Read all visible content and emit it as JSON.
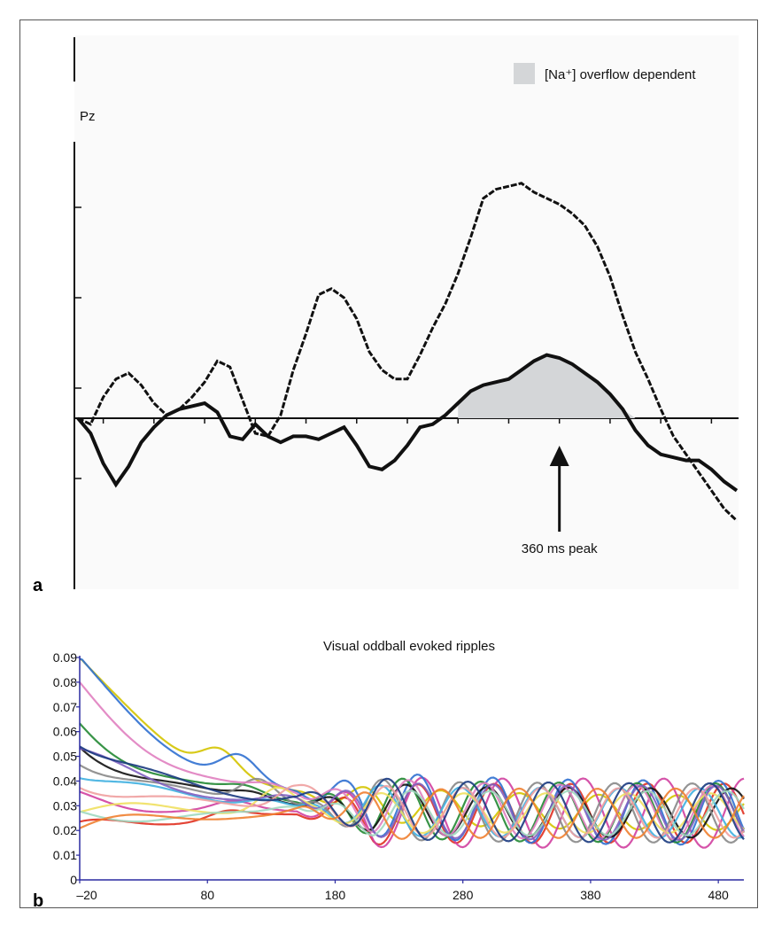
{
  "colors": {
    "background": "#ffffff",
    "frame": "#555555",
    "shade": "#d4d6d8",
    "panel_a_bg": "#fafafa",
    "axis_b": "#2a2aa0"
  },
  "panel_a": {
    "letter": "a",
    "channel_label": "Pz",
    "legend_label": "[Na⁺] overflow dependent",
    "annotation": "360 ms peak"
  },
  "panel_b": {
    "letter": "b",
    "title": "Visual oddball evoked ripples"
  },
  "chart_data": [
    {
      "type": "line",
      "panel": "a",
      "title": "",
      "xlabel": "",
      "ylabel": "",
      "x_range_ms": [
        -20,
        500
      ],
      "shaded_region": {
        "name": "[Na⁺] overflow dependent",
        "x_start": 280,
        "x_end": 450,
        "between": "thick trace and baseline"
      },
      "annotation": {
        "text": "360 ms peak",
        "x": 360
      },
      "series": [
        {
          "name": "",
          "style": "thin-dashed",
          "x": [
            -20,
            -10,
            0,
            10,
            20,
            30,
            40,
            50,
            60,
            70,
            80,
            90,
            100,
            110,
            120,
            130,
            140,
            150,
            160,
            170,
            180,
            190,
            200,
            210,
            220,
            230,
            240,
            250,
            260,
            270,
            280,
            290,
            300,
            310,
            320,
            330,
            340,
            350,
            360,
            370,
            380,
            390,
            400,
            410,
            420,
            430,
            440,
            450,
            460,
            470,
            480,
            490,
            500
          ],
          "y": [
            0.0,
            -0.2,
            0.7,
            1.3,
            1.5,
            1.1,
            0.5,
            0.1,
            0.3,
            0.7,
            1.2,
            1.9,
            1.7,
            0.6,
            -0.5,
            -0.6,
            0.1,
            1.6,
            2.8,
            4.1,
            4.3,
            4.0,
            3.3,
            2.2,
            1.6,
            1.3,
            1.3,
            2.1,
            3.0,
            3.8,
            4.8,
            6.0,
            7.3,
            7.6,
            7.7,
            7.8,
            7.5,
            7.3,
            7.1,
            6.8,
            6.4,
            5.7,
            4.7,
            3.4,
            2.2,
            1.3,
            0.3,
            -0.6,
            -1.2,
            -1.8,
            -2.4,
            -3.0,
            -3.4
          ]
        },
        {
          "name": "",
          "style": "thick-solid",
          "x": [
            -20,
            -10,
            0,
            10,
            20,
            30,
            40,
            50,
            60,
            70,
            80,
            90,
            100,
            110,
            120,
            130,
            140,
            150,
            160,
            170,
            180,
            190,
            200,
            210,
            220,
            230,
            240,
            250,
            260,
            270,
            280,
            290,
            300,
            310,
            320,
            330,
            340,
            350,
            360,
            370,
            380,
            390,
            400,
            410,
            420,
            430,
            440,
            450,
            460,
            470,
            480,
            490,
            500
          ],
          "y": [
            0.0,
            -0.5,
            -1.5,
            -2.2,
            -1.6,
            -0.8,
            -0.3,
            0.1,
            0.3,
            0.4,
            0.5,
            0.2,
            -0.6,
            -0.7,
            -0.2,
            -0.6,
            -0.8,
            -0.6,
            -0.6,
            -0.7,
            -0.5,
            -0.3,
            -0.9,
            -1.6,
            -1.7,
            -1.4,
            -0.9,
            -0.3,
            -0.2,
            0.1,
            0.5,
            0.9,
            1.1,
            1.2,
            1.3,
            1.6,
            1.9,
            2.1,
            2.0,
            1.8,
            1.5,
            1.2,
            0.8,
            0.3,
            -0.4,
            -0.9,
            -1.2,
            -1.3,
            -1.4,
            -1.4,
            -1.7,
            -2.1,
            -2.4
          ]
        }
      ]
    },
    {
      "type": "line",
      "panel": "b",
      "title": "Visual oddball evoked ripples",
      "xlabel": "",
      "ylabel": "",
      "xlim": [
        -20,
        500
      ],
      "ylim": [
        0,
        0.09
      ],
      "x_ticks": [
        -20,
        80,
        180,
        280,
        380,
        480
      ],
      "x_tick_labels": [
        "–20",
        "80",
        "180",
        "280",
        "380",
        "480"
      ],
      "y_ticks": [
        0,
        0.01,
        0.02,
        0.03,
        0.04,
        0.05,
        0.06,
        0.07,
        0.08,
        0.09
      ],
      "y_tick_labels": [
        "0",
        "0.01",
        "0.02",
        "0.03",
        "0.04",
        "0.05",
        "0.06",
        "0.07",
        "0.08",
        "0.09"
      ],
      "series": [
        {
          "color": "#d4c400",
          "start": 0.09,
          "amp": 0.007,
          "phase": 0.0,
          "freq": 1.0
        },
        {
          "color": "#e03020",
          "start": 0.02,
          "amp": 0.012,
          "phase": 1.1,
          "freq": 1.03
        },
        {
          "color": "#d040a0",
          "start": 0.032,
          "amp": 0.014,
          "phase": 2.0,
          "freq": 0.98
        },
        {
          "color": "#3070d0",
          "start": 0.088,
          "amp": 0.013,
          "phase": 0.6,
          "freq": 1.05
        },
        {
          "color": "#228833",
          "start": 0.062,
          "amp": 0.012,
          "phase": 2.8,
          "freq": 1.01
        },
        {
          "color": "#111111",
          "start": 0.055,
          "amp": 0.01,
          "phase": 3.5,
          "freq": 0.97
        },
        {
          "color": "#888888",
          "start": 0.05,
          "amp": 0.012,
          "phase": 4.2,
          "freq": 1.02
        },
        {
          "color": "#40b0e0",
          "start": 0.045,
          "amp": 0.01,
          "phase": 5.0,
          "freq": 0.99
        },
        {
          "color": "#e080c0",
          "start": 0.076,
          "amp": 0.011,
          "phase": 1.6,
          "freq": 1.04
        },
        {
          "color": "#f0e060",
          "start": 0.03,
          "amp": 0.008,
          "phase": 5.6,
          "freq": 0.96
        },
        {
          "color": "#8060c0",
          "start": 0.052,
          "amp": 0.011,
          "phase": 0.3,
          "freq": 1.06
        },
        {
          "color": "#a0d8c0",
          "start": 0.025,
          "amp": 0.009,
          "phase": 2.4,
          "freq": 1.0
        },
        {
          "color": "#f0a0a0",
          "start": 0.04,
          "amp": 0.01,
          "phase": 3.9,
          "freq": 1.02
        },
        {
          "color": "#1a3a80",
          "start": 0.058,
          "amp": 0.012,
          "phase": 4.7,
          "freq": 0.98
        },
        {
          "color": "#f08030",
          "start": 0.022,
          "amp": 0.01,
          "phase": 6.0,
          "freq": 1.01
        }
      ]
    }
  ]
}
